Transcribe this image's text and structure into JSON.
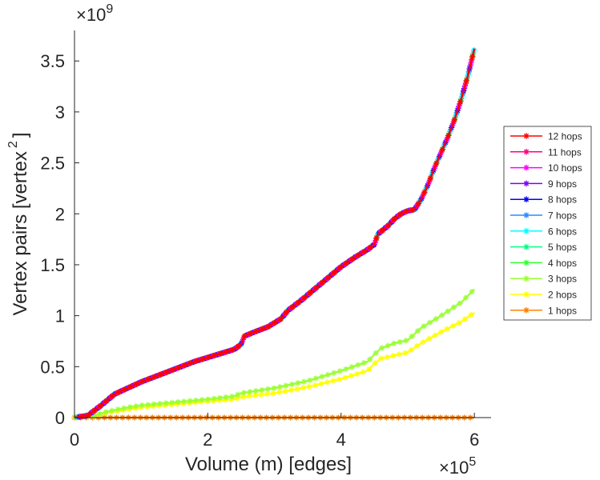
{
  "chart_data": {
    "type": "line",
    "xlabel": "Volume (m) [edges]",
    "ylabel": "Vertex pairs [vertex",
    "ylabel_superscript": "2",
    "ylabel_close": "]",
    "x_exponent_base": "×10",
    "x_exponent_power": "5",
    "y_exponent_base": "×10",
    "y_exponent_power": "9",
    "xlim": [
      0,
      6.25
    ],
    "ylim": [
      0,
      3.8
    ],
    "x_scale_note": "x values in units of 1e5 edges; y values in units of 1e9 vertex pairs",
    "xticks": [
      0,
      2,
      4,
      6
    ],
    "xtick_labels": [
      "0",
      "2",
      "4",
      "6"
    ],
    "yticks": [
      0,
      0.5,
      1,
      1.5,
      2,
      2.5,
      3,
      3.5
    ],
    "ytick_labels": [
      "0",
      "0.5",
      "1",
      "1.5",
      "2",
      "2.5",
      "3",
      "3.5"
    ],
    "grid": false,
    "legend_position": "right",
    "series": [
      {
        "name": "12 hops",
        "color": "#ff0000",
        "group": "full"
      },
      {
        "name": "11 hops",
        "color": "#ff0080",
        "group": "full"
      },
      {
        "name": "10 hops",
        "color": "#ff00ff",
        "group": "full"
      },
      {
        "name": "9 hops",
        "color": "#8000ff",
        "group": "full"
      },
      {
        "name": "8 hops",
        "color": "#0000ff",
        "group": "full"
      },
      {
        "name": "7 hops",
        "color": "#2a8cff",
        "group": "full"
      },
      {
        "name": "6 hops",
        "color": "#00ffff",
        "group": "full"
      },
      {
        "name": "5 hops",
        "color": "#00ff80",
        "group": "full"
      },
      {
        "name": "4 hops",
        "color": "#33ff33",
        "group": "full"
      },
      {
        "name": "3 hops",
        "color": "#99ff33",
        "group": "three"
      },
      {
        "name": "2 hops",
        "color": "#ffff00",
        "group": "two"
      },
      {
        "name": "1 hops",
        "color": "#ff8000",
        "group": "one"
      }
    ],
    "curves": {
      "full": {
        "x": [
          0,
          0.2,
          0.4,
          0.6,
          0.8,
          1.0,
          1.2,
          1.4,
          1.6,
          1.8,
          2.0,
          2.2,
          2.4,
          2.5,
          2.55,
          2.7,
          2.9,
          3.1,
          3.2,
          3.4,
          3.6,
          3.8,
          4.0,
          4.2,
          4.4,
          4.5,
          4.55,
          4.7,
          4.8,
          4.9,
          5.0,
          5.1,
          5.2,
          5.3,
          5.4,
          5.5,
          5.6,
          5.7,
          5.8,
          5.9,
          6.0
        ],
        "y": [
          0,
          0.02,
          0.12,
          0.23,
          0.29,
          0.35,
          0.4,
          0.45,
          0.5,
          0.55,
          0.59,
          0.63,
          0.67,
          0.72,
          0.8,
          0.84,
          0.89,
          0.97,
          1.05,
          1.15,
          1.26,
          1.37,
          1.48,
          1.57,
          1.65,
          1.7,
          1.8,
          1.88,
          1.95,
          2.0,
          2.03,
          2.04,
          2.14,
          2.28,
          2.45,
          2.6,
          2.75,
          2.92,
          3.12,
          3.35,
          3.62
        ]
      },
      "three": {
        "x": [
          0,
          0.3,
          0.5,
          0.8,
          1.0,
          1.5,
          2.0,
          2.4,
          2.5,
          2.6,
          3.0,
          3.5,
          4.0,
          4.4,
          4.5,
          4.6,
          4.8,
          5.0,
          5.2,
          5.5,
          5.8,
          6.0
        ],
        "y": [
          0,
          0.02,
          0.06,
          0.1,
          0.12,
          0.15,
          0.18,
          0.21,
          0.24,
          0.25,
          0.29,
          0.36,
          0.46,
          0.55,
          0.62,
          0.68,
          0.73,
          0.76,
          0.88,
          1.0,
          1.13,
          1.26
        ]
      },
      "two": {
        "x": [
          0,
          0.3,
          0.5,
          0.8,
          1.0,
          1.5,
          2.0,
          2.4,
          2.5,
          2.6,
          3.0,
          3.5,
          4.0,
          4.4,
          4.5,
          4.6,
          4.8,
          5.0,
          5.2,
          5.5,
          5.8,
          6.0
        ],
        "y": [
          0,
          0.015,
          0.05,
          0.08,
          0.1,
          0.13,
          0.16,
          0.18,
          0.2,
          0.21,
          0.24,
          0.3,
          0.38,
          0.46,
          0.53,
          0.58,
          0.61,
          0.64,
          0.73,
          0.84,
          0.94,
          1.03
        ]
      },
      "one": {
        "x": [
          0,
          1,
          2,
          3,
          4,
          5,
          6
        ],
        "y": [
          0,
          0,
          0,
          0,
          0,
          0,
          0
        ]
      }
    }
  }
}
